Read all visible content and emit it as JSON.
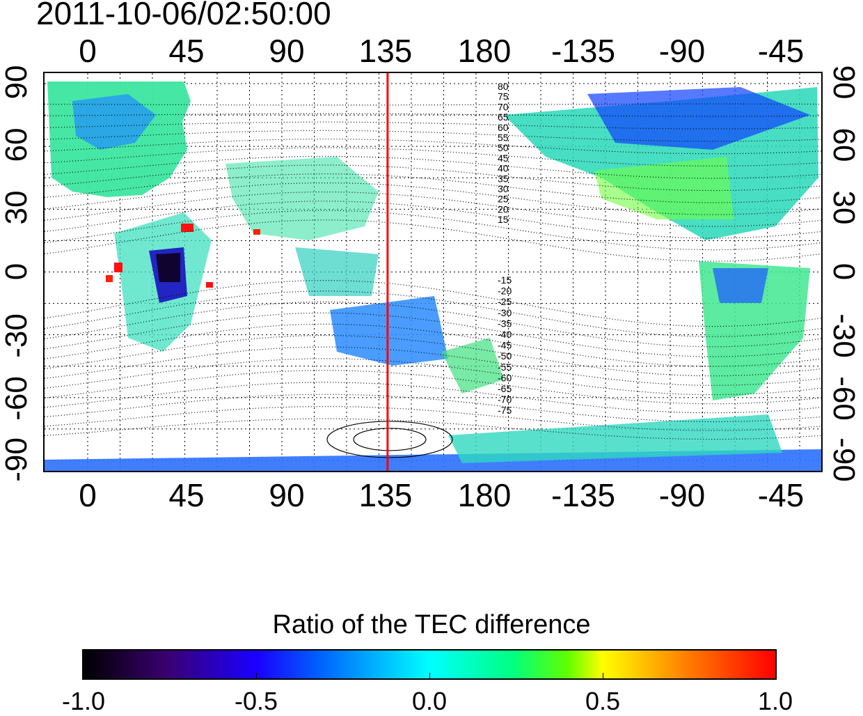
{
  "timestamp": "2011-10-06/02:50:00",
  "axes": {
    "top_lon_ticks": [
      "0",
      "45",
      "90",
      "135",
      "180",
      "-135",
      "-90",
      "-45"
    ],
    "bottom_lon_ticks": [
      "0",
      "45",
      "90",
      "135",
      "180",
      "-135",
      "-90",
      "-45"
    ],
    "left_lat_ticks": [
      "90",
      "60",
      "30",
      "0",
      "-30",
      "-60",
      "-90"
    ],
    "right_lat_ticks": [
      "90",
      "60",
      "30",
      "0",
      "-30",
      "-60",
      "-90"
    ]
  },
  "map": {
    "lon_range": [
      -20,
      340
    ],
    "lat_range": [
      -95,
      95
    ],
    "marker_line": {
      "lon": 139,
      "color": "#ff0000"
    },
    "contour_labels_north": [
      "80",
      "75",
      "70",
      "65",
      "60",
      "55",
      "50",
      "45",
      "40",
      "35",
      "30",
      "25",
      "20",
      "15"
    ],
    "contour_labels_south": [
      "-15",
      "-20",
      "-25",
      "-30",
      "-35",
      "-40",
      "-45",
      "-50",
      "-55",
      "-60",
      "-65",
      "-70",
      "-75"
    ]
  },
  "colorbar": {
    "title": "Ratio of the TEC difference",
    "min": -1.0,
    "max": 1.0,
    "tick_labels": [
      "-1.0",
      "-0.5",
      "0.0",
      "0.5",
      "1.0"
    ],
    "colors": [
      "#000000",
      "#3a0070",
      "#1a00ff",
      "#0060ff",
      "#00ffff",
      "#00ff80",
      "#60ff00",
      "#ffff00",
      "#ff8000",
      "#ff0000"
    ]
  }
}
